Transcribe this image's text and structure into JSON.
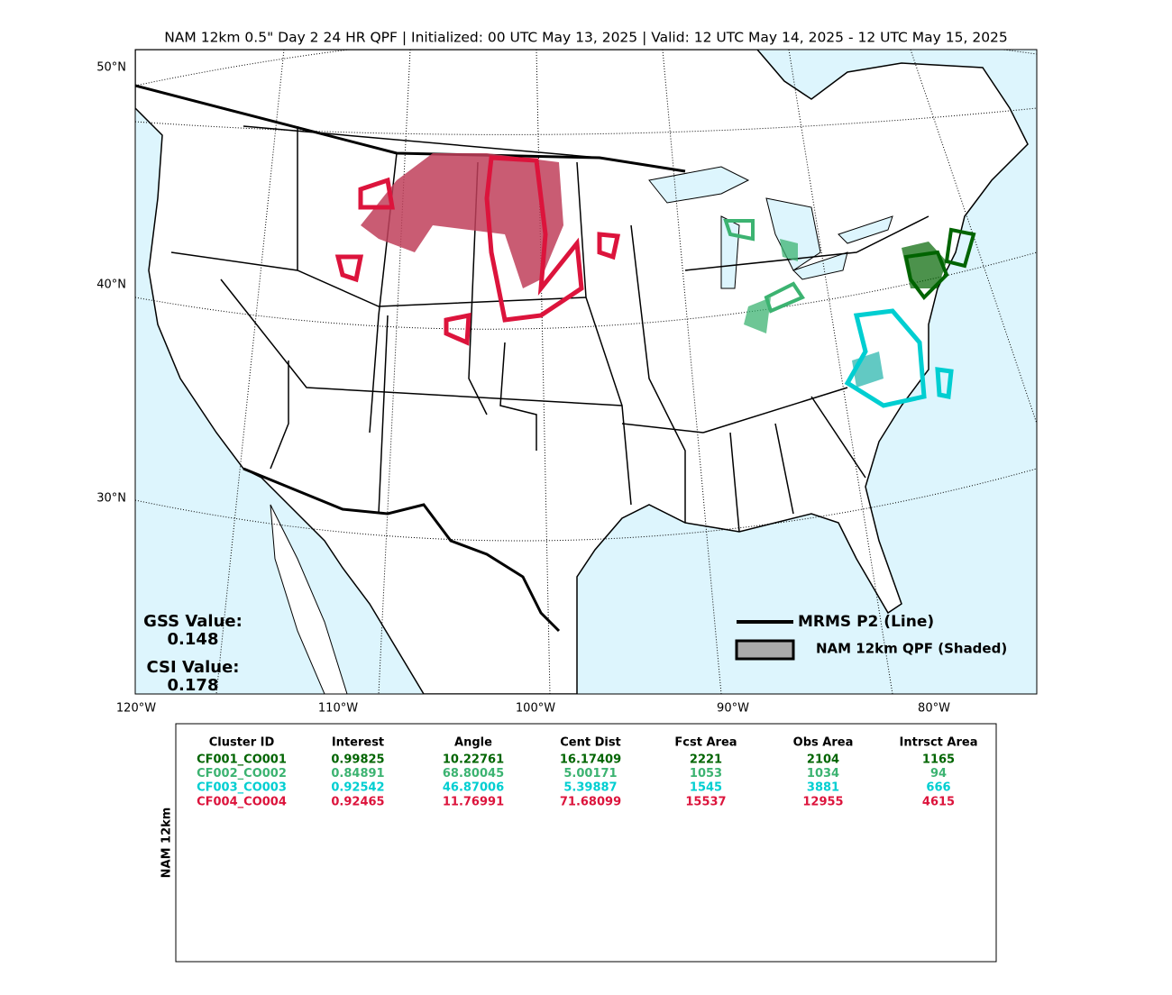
{
  "header": {
    "title": "NAM 12km 0.5\" Day 2 24 HR QPF | Initialized: 00 UTC May 13, 2025 | Valid: 12 UTC May 14, 2025 - 12 UTC May 15, 2025"
  },
  "map": {
    "lat_labels": [
      "50°N",
      "40°N",
      "30°N"
    ],
    "lon_labels": [
      "120°W",
      "110°W",
      "100°W",
      "90°W",
      "80°W"
    ],
    "stats": [
      {
        "label": "GSS Value:",
        "value": 0.148
      },
      {
        "label": "CSI Value:",
        "value": 0.178
      }
    ],
    "legend": [
      "MRMS P2 (Line)",
      "NAM 12km QPF (Shaded)"
    ]
  },
  "table": {
    "side_label": "NAM 12km",
    "columns": [
      "Cluster ID",
      "Interest",
      "Angle",
      "Cent Dist",
      "Fcst Area",
      "Obs Area",
      "Intrsct Area"
    ],
    "rows": [
      {
        "color": "#006400",
        "cells": [
          "CF001_CO001",
          0.99825,
          10.22761,
          16.17409,
          2221,
          2104,
          1165
        ]
      },
      {
        "color": "#3cb371",
        "cells": [
          "CF002_CO002",
          0.84891,
          68.80045,
          5.00171,
          1053,
          1034,
          94
        ]
      },
      {
        "color": "#00ced1",
        "cells": [
          "CF003_CO003",
          0.92542,
          46.87006,
          5.39887,
          1545,
          3881,
          666
        ]
      },
      {
        "color": "#dc143c",
        "cells": [
          "CF004_CO004",
          0.92465,
          11.76991,
          71.68099,
          15537,
          12955,
          4615
        ]
      }
    ]
  }
}
